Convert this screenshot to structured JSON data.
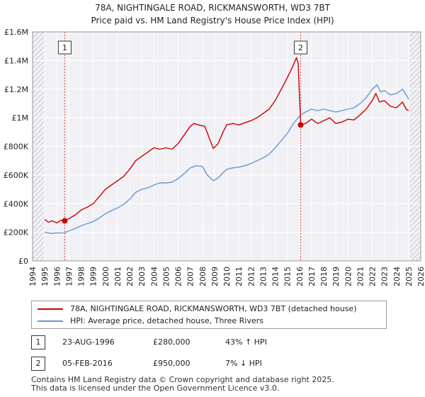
{
  "chart_data": {
    "type": "line",
    "title": "78A, NIGHTINGALE ROAD, RICKMANSWORTH, WD3 7BT",
    "subtitle": "Price paid vs. HM Land Registry's House Price Index (HPI)",
    "xlim": [
      1994,
      2026
    ],
    "ylim": [
      0,
      1600000
    ],
    "x_ticks": [
      "1994",
      "1995",
      "1996",
      "1997",
      "1998",
      "1999",
      "2000",
      "2001",
      "2002",
      "2003",
      "2004",
      "2005",
      "2006",
      "2007",
      "2008",
      "2009",
      "2010",
      "2011",
      "2012",
      "2013",
      "2014",
      "2015",
      "2016",
      "2017",
      "2018",
      "2019",
      "2020",
      "2021",
      "2022",
      "2023",
      "2024",
      "2025",
      "2026"
    ],
    "y_ticks": [
      {
        "value": 0,
        "label": "£0"
      },
      {
        "value": 200000,
        "label": "£200K"
      },
      {
        "value": 400000,
        "label": "£400K"
      },
      {
        "value": 600000,
        "label": "£600K"
      },
      {
        "value": 800000,
        "label": "£800K"
      },
      {
        "value": 1000000,
        "label": "£1M"
      },
      {
        "value": 1200000,
        "label": "£1.2M"
      },
      {
        "value": 1400000,
        "label": "£1.4M"
      },
      {
        "value": 1600000,
        "label": "£1.6M"
      }
    ],
    "grid": true,
    "hatched_regions": [
      [
        1994,
        1995
      ],
      [
        2025.1,
        2026
      ]
    ],
    "series": [
      {
        "name": "78A, NIGHTINGALE ROAD, RICKMANSWORTH, WD3 7BT (detached house)",
        "color": "#cc0000",
        "points": [
          [
            1995.0,
            290000
          ],
          [
            1995.3,
            270000
          ],
          [
            1995.6,
            280000
          ],
          [
            1996.0,
            265000
          ],
          [
            1996.3,
            283000
          ],
          [
            1996.65,
            280000
          ],
          [
            1997.0,
            295000
          ],
          [
            1997.5,
            320000
          ],
          [
            1998.0,
            355000
          ],
          [
            1998.5,
            375000
          ],
          [
            1999.0,
            400000
          ],
          [
            1999.5,
            450000
          ],
          [
            2000.0,
            500000
          ],
          [
            2000.5,
            530000
          ],
          [
            2001.0,
            560000
          ],
          [
            2001.5,
            590000
          ],
          [
            2002.0,
            640000
          ],
          [
            2002.5,
            700000
          ],
          [
            2003.0,
            730000
          ],
          [
            2003.5,
            760000
          ],
          [
            2004.0,
            790000
          ],
          [
            2004.5,
            780000
          ],
          [
            2005.0,
            790000
          ],
          [
            2005.5,
            780000
          ],
          [
            2006.0,
            820000
          ],
          [
            2006.5,
            880000
          ],
          [
            2007.0,
            940000
          ],
          [
            2007.3,
            960000
          ],
          [
            2007.7,
            950000
          ],
          [
            2008.2,
            940000
          ],
          [
            2008.6,
            850000
          ],
          [
            2008.9,
            785000
          ],
          [
            2009.3,
            820000
          ],
          [
            2009.7,
            900000
          ],
          [
            2010.0,
            950000
          ],
          [
            2010.5,
            960000
          ],
          [
            2011.0,
            950000
          ],
          [
            2011.5,
            965000
          ],
          [
            2012.0,
            980000
          ],
          [
            2012.5,
            1000000
          ],
          [
            2013.0,
            1030000
          ],
          [
            2013.5,
            1060000
          ],
          [
            2014.0,
            1120000
          ],
          [
            2014.5,
            1200000
          ],
          [
            2015.0,
            1280000
          ],
          [
            2015.4,
            1350000
          ],
          [
            2015.75,
            1420000
          ],
          [
            2015.9,
            1380000
          ],
          [
            2016.0,
            1150000
          ],
          [
            2016.1,
            950000
          ],
          [
            2016.5,
            960000
          ],
          [
            2017.0,
            990000
          ],
          [
            2017.5,
            960000
          ],
          [
            2018.0,
            980000
          ],
          [
            2018.5,
            1000000
          ],
          [
            2019.0,
            960000
          ],
          [
            2019.5,
            970000
          ],
          [
            2020.0,
            990000
          ],
          [
            2020.5,
            985000
          ],
          [
            2021.0,
            1020000
          ],
          [
            2021.5,
            1060000
          ],
          [
            2022.0,
            1120000
          ],
          [
            2022.3,
            1170000
          ],
          [
            2022.6,
            1110000
          ],
          [
            2023.0,
            1120000
          ],
          [
            2023.5,
            1080000
          ],
          [
            2024.0,
            1070000
          ],
          [
            2024.5,
            1110000
          ],
          [
            2024.8,
            1060000
          ],
          [
            2025.0,
            1050000
          ]
        ]
      },
      {
        "name": "HPI: Average price, detached house, Three Rivers",
        "color": "#6699cc",
        "points": [
          [
            1995.0,
            200000
          ],
          [
            1995.5,
            192000
          ],
          [
            1996.0,
            195000
          ],
          [
            1996.65,
            196000
          ],
          [
            1997.0,
            210000
          ],
          [
            1997.5,
            225000
          ],
          [
            1998.0,
            245000
          ],
          [
            1998.5,
            260000
          ],
          [
            1999.0,
            275000
          ],
          [
            1999.5,
            300000
          ],
          [
            2000.0,
            330000
          ],
          [
            2000.5,
            350000
          ],
          [
            2001.0,
            370000
          ],
          [
            2001.5,
            395000
          ],
          [
            2002.0,
            430000
          ],
          [
            2002.5,
            480000
          ],
          [
            2003.0,
            500000
          ],
          [
            2003.5,
            510000
          ],
          [
            2004.0,
            530000
          ],
          [
            2004.5,
            545000
          ],
          [
            2005.0,
            545000
          ],
          [
            2005.5,
            550000
          ],
          [
            2006.0,
            575000
          ],
          [
            2006.5,
            610000
          ],
          [
            2007.0,
            650000
          ],
          [
            2007.5,
            665000
          ],
          [
            2008.0,
            660000
          ],
          [
            2008.4,
            600000
          ],
          [
            2008.9,
            560000
          ],
          [
            2009.3,
            580000
          ],
          [
            2009.7,
            615000
          ],
          [
            2010.0,
            640000
          ],
          [
            2010.5,
            650000
          ],
          [
            2011.0,
            655000
          ],
          [
            2011.5,
            665000
          ],
          [
            2012.0,
            680000
          ],
          [
            2012.5,
            700000
          ],
          [
            2013.0,
            720000
          ],
          [
            2013.5,
            745000
          ],
          [
            2014.0,
            790000
          ],
          [
            2014.5,
            840000
          ],
          [
            2015.0,
            890000
          ],
          [
            2015.5,
            960000
          ],
          [
            2016.1,
            1020000
          ],
          [
            2016.5,
            1040000
          ],
          [
            2017.0,
            1060000
          ],
          [
            2017.5,
            1050000
          ],
          [
            2018.0,
            1060000
          ],
          [
            2018.5,
            1050000
          ],
          [
            2019.0,
            1040000
          ],
          [
            2019.5,
            1050000
          ],
          [
            2020.0,
            1060000
          ],
          [
            2020.5,
            1070000
          ],
          [
            2021.0,
            1100000
          ],
          [
            2021.5,
            1140000
          ],
          [
            2022.0,
            1200000
          ],
          [
            2022.4,
            1230000
          ],
          [
            2022.7,
            1180000
          ],
          [
            2023.0,
            1190000
          ],
          [
            2023.5,
            1160000
          ],
          [
            2024.0,
            1170000
          ],
          [
            2024.5,
            1200000
          ],
          [
            2024.8,
            1160000
          ],
          [
            2025.0,
            1130000
          ]
        ]
      }
    ],
    "sales": [
      {
        "id": "1",
        "date": "23-AUG-1996",
        "x": 1996.65,
        "value": 280000,
        "price": "£280,000",
        "hpi": "43% ↑ HPI"
      },
      {
        "id": "2",
        "date": "05-FEB-2016",
        "x": 2016.1,
        "value": 950000,
        "price": "£950,000",
        "hpi": "7% ↓ HPI"
      }
    ]
  },
  "legend": {
    "property": "78A, NIGHTINGALE ROAD, RICKMANSWORTH, WD3 7BT (detached house)",
    "hpi": "HPI: Average price, detached house, Three Rivers"
  },
  "footer": {
    "line1": "Contains HM Land Registry data © Crown copyright and database right 2025.",
    "line2": "This data is licensed under the Open Government Licence v3.0."
  },
  "colors": {
    "property": "#cc0000",
    "hpi": "#6699cc",
    "grid": "#dddddd",
    "background": "#f0f0f5"
  }
}
